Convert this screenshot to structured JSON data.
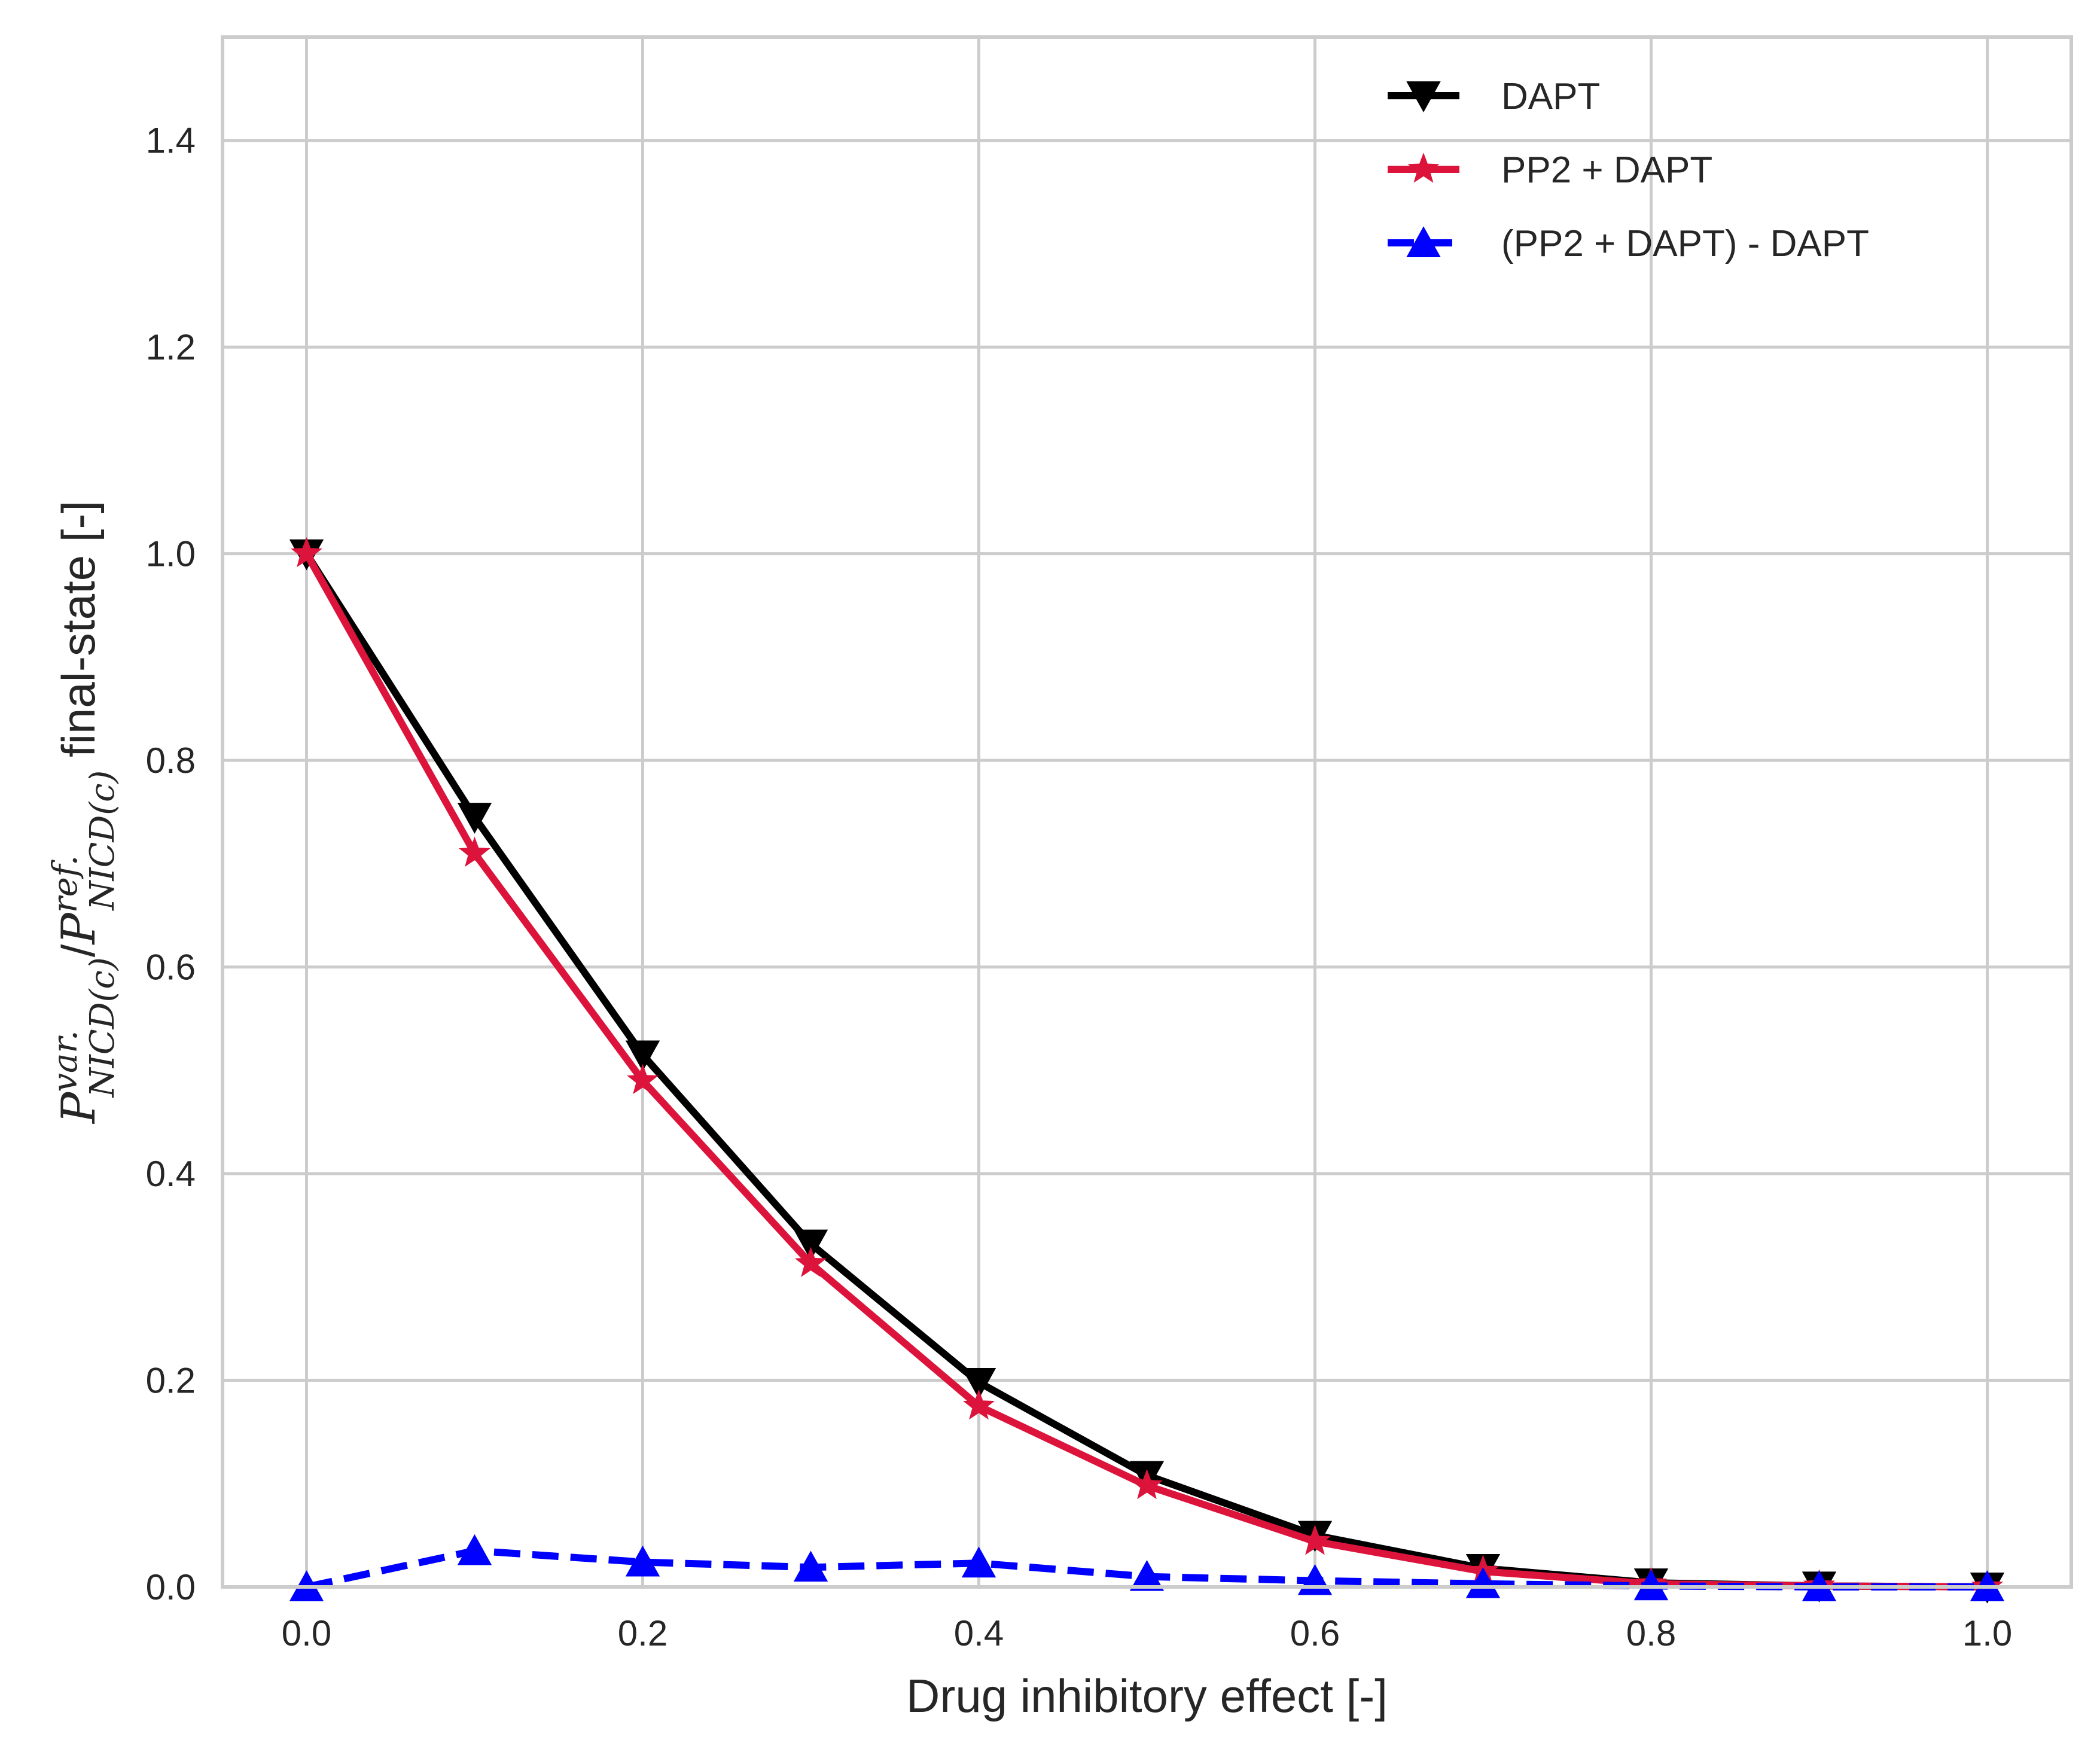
{
  "colors": {
    "background": "#ffffff",
    "grid": "#cccccc",
    "frame": "#cccccc",
    "text": "#262626"
  },
  "chart_data": {
    "type": "line",
    "title": "",
    "xlabel": "Drug inhibitory effect [-]",
    "ylabel": {
      "symbol": "P",
      "numerator_sup": "var.",
      "numerator_sub": "NICD(c)",
      "separator": "/",
      "denominator_sup": "ref.",
      "denominator_sub": "NICD(c)",
      "suffix": " final-state [-]"
    },
    "xlim": [
      -0.05,
      1.05
    ],
    "ylim": [
      0.0,
      1.5
    ],
    "xticks": [
      0.0,
      0.2,
      0.4,
      0.6,
      0.8,
      1.0
    ],
    "xtick_labels": [
      "0.0",
      "0.2",
      "0.4",
      "0.6",
      "0.8",
      "1.0"
    ],
    "yticks": [
      0.0,
      0.2,
      0.4,
      0.6,
      0.8,
      1.0,
      1.2,
      1.4
    ],
    "ytick_labels": [
      "0.0",
      "0.2",
      "0.4",
      "0.6",
      "0.8",
      "1.0",
      "1.2",
      "1.4"
    ],
    "grid": true,
    "legend_position": "top-right",
    "x": [
      0.0,
      0.1,
      0.2,
      0.3,
      0.4,
      0.5,
      0.6,
      0.7,
      0.8,
      0.9,
      1.0
    ],
    "series": [
      {
        "name": "DAPT",
        "color": "#000000",
        "marker": "triangle-down",
        "line": "solid",
        "values": [
          1.0,
          0.745,
          0.515,
          0.332,
          0.198,
          0.108,
          0.05,
          0.018,
          0.004,
          0.001,
          0.0
        ]
      },
      {
        "name": "PP2 + DAPT",
        "color": "#dc143c",
        "marker": "star",
        "line": "solid",
        "values": [
          1.0,
          0.71,
          0.49,
          0.313,
          0.175,
          0.098,
          0.044,
          0.015,
          0.003,
          0.001,
          0.0
        ]
      },
      {
        "name": "(PP2 + DAPT) - DAPT",
        "color": "#0000ff",
        "marker": "triangle-up",
        "line": "dashed",
        "values": [
          0.0,
          0.035,
          0.024,
          0.019,
          0.023,
          0.01,
          0.006,
          0.003,
          0.001,
          0.0,
          0.0
        ]
      }
    ]
  }
}
